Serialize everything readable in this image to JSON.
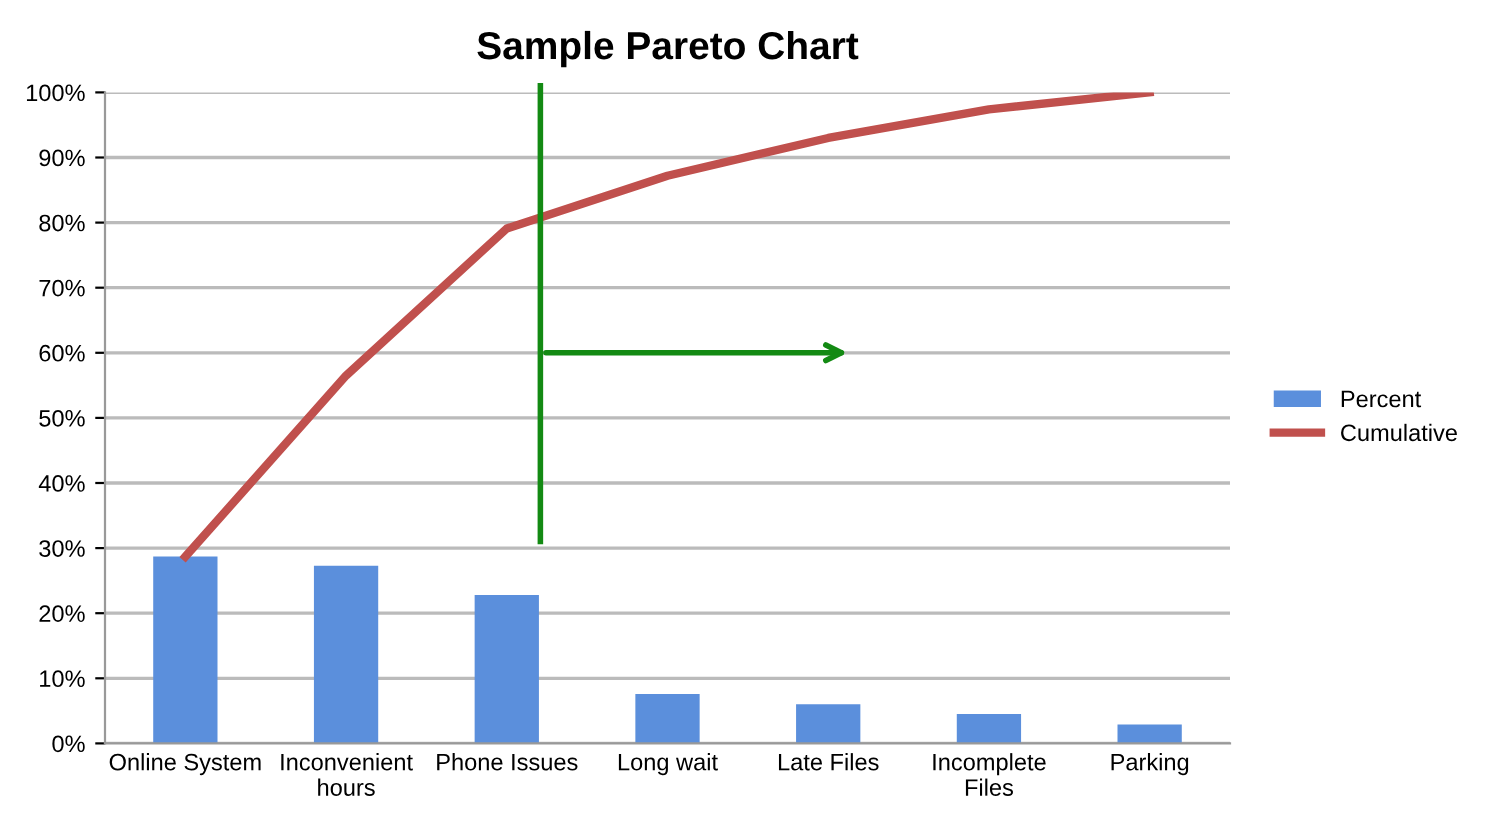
{
  "chart_data": {
    "type": "bar",
    "title": "Sample Pareto Chart",
    "categories": [
      "Online System",
      "Inconvenient\nhours",
      "Phone Issues",
      "Long wait",
      "Late Files",
      "Incomplete\nFiles",
      "Parking"
    ],
    "series": [
      {
        "name": "Percent",
        "color": "#5b8fdc",
        "values": [
          28.7,
          27.3,
          22.8,
          7.6,
          6.0,
          4.5,
          2.9
        ]
      },
      {
        "name": "Cumulative",
        "type": "line",
        "color": "#c0504d",
        "values": [
          28.7,
          56.5,
          79.1,
          87.2,
          93.0,
          97.4,
          100
        ]
      }
    ],
    "ylim": [
      0,
      100
    ],
    "yticks": [
      {
        "value": 0,
        "label": "0%"
      },
      {
        "value": 10,
        "label": "10%"
      },
      {
        "value": 20,
        "label": "20%"
      },
      {
        "value": 30,
        "label": "30%"
      },
      {
        "value": 40,
        "label": "40%"
      },
      {
        "value": 50,
        "label": "50%"
      },
      {
        "value": 60,
        "label": "60%"
      },
      {
        "value": 70,
        "label": "70%"
      },
      {
        "value": 80,
        "label": "80%"
      },
      {
        "value": 90,
        "label": "90%"
      },
      {
        "value": 100,
        "label": "100%"
      }
    ],
    "grid": "y",
    "legend": "right",
    "marker": "none",
    "line_style": "solid"
  }
}
